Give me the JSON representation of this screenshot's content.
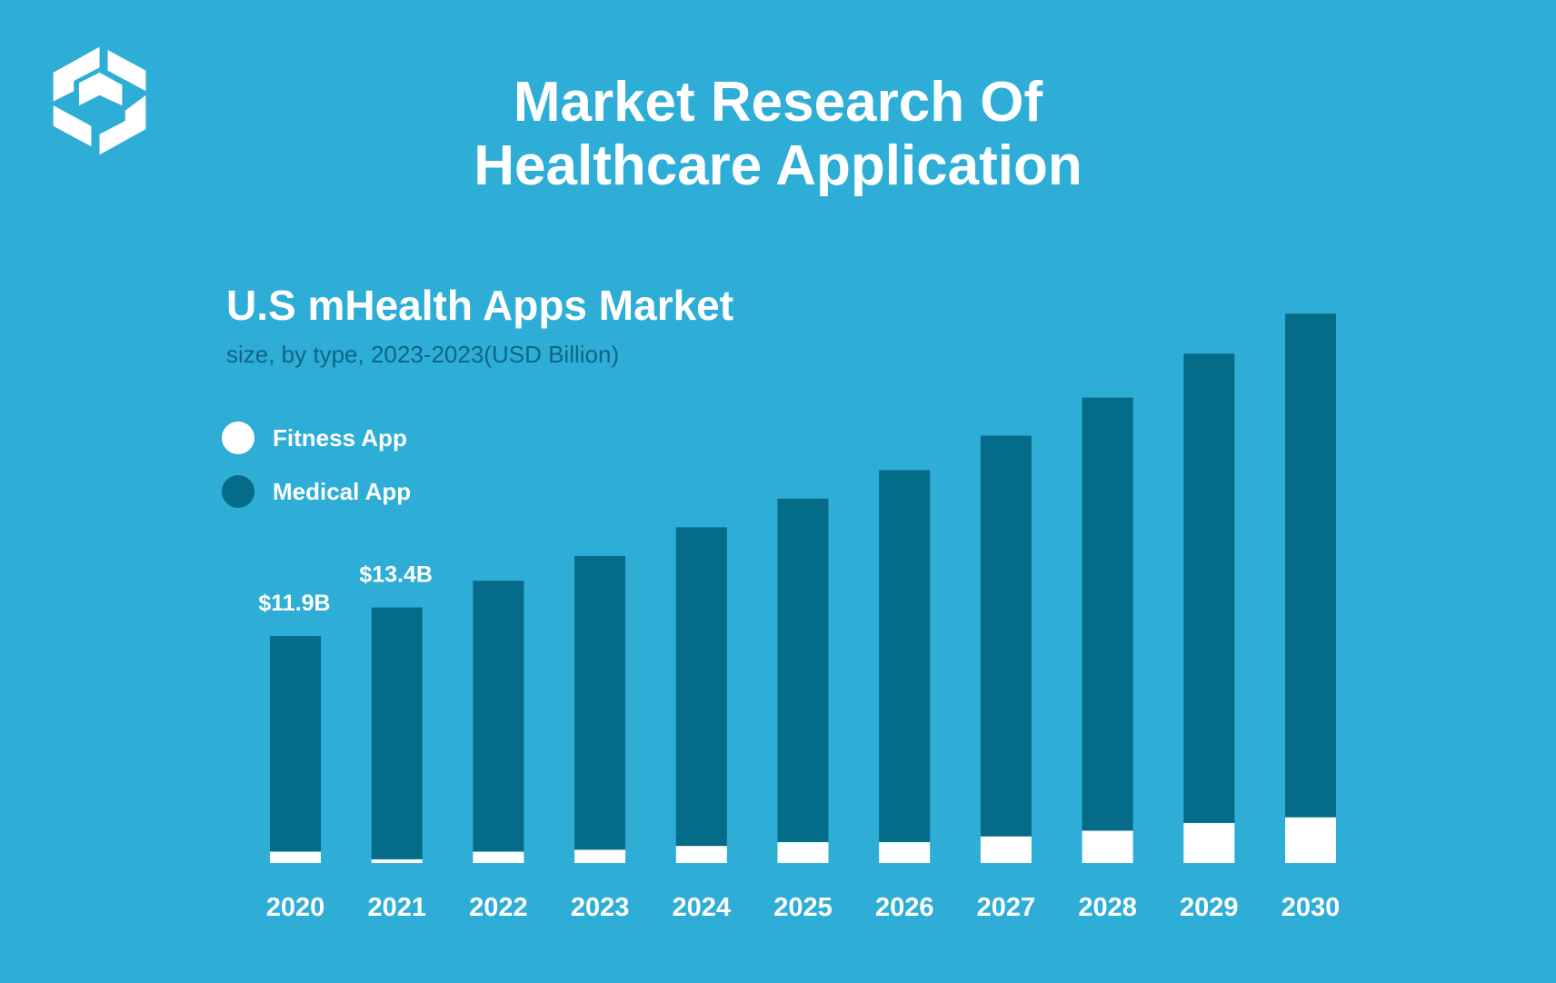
{
  "colors": {
    "background": "#2EAED6",
    "fitness": "#FFFFFF",
    "medical": "#046B88",
    "subtitle": "#0D6685"
  },
  "header": {
    "logo_icon": "stylized-s-logo",
    "title_line1": "Market Research Of",
    "title_line2": "Healthcare Application"
  },
  "chart_data": {
    "type": "bar",
    "stacked": true,
    "title": "U.S mHealth Apps Market",
    "subtitle": "size, by type, 2023-2023(USD Billion)",
    "categories": [
      "2020",
      "2021",
      "2022",
      "2023",
      "2024",
      "2025",
      "2026",
      "2027",
      "2028",
      "2029",
      "2030"
    ],
    "series": [
      {
        "name": "Fitness App",
        "color": "#FFFFFF",
        "values": [
          0.6,
          0.2,
          0.6,
          0.7,
          0.9,
          1.1,
          1.1,
          1.4,
          1.7,
          2.1,
          2.4
        ]
      },
      {
        "name": "Medical App",
        "color": "#046B88",
        "values": [
          11.3,
          13.2,
          14.2,
          15.4,
          16.7,
          18.0,
          19.5,
          21.0,
          22.7,
          24.6,
          26.4
        ]
      }
    ],
    "data_labels": [
      {
        "category": "2020",
        "text": "$11.9B"
      },
      {
        "category": "2021",
        "text": "$13.4B"
      }
    ],
    "totals": [
      11.9,
      13.4,
      14.8,
      16.1,
      17.6,
      19.1,
      20.6,
      22.4,
      24.4,
      26.7,
      28.8
    ],
    "ylim": [
      0,
      30
    ],
    "xlabel": "",
    "ylabel": "",
    "grid": false,
    "legend_position": "top-left"
  }
}
